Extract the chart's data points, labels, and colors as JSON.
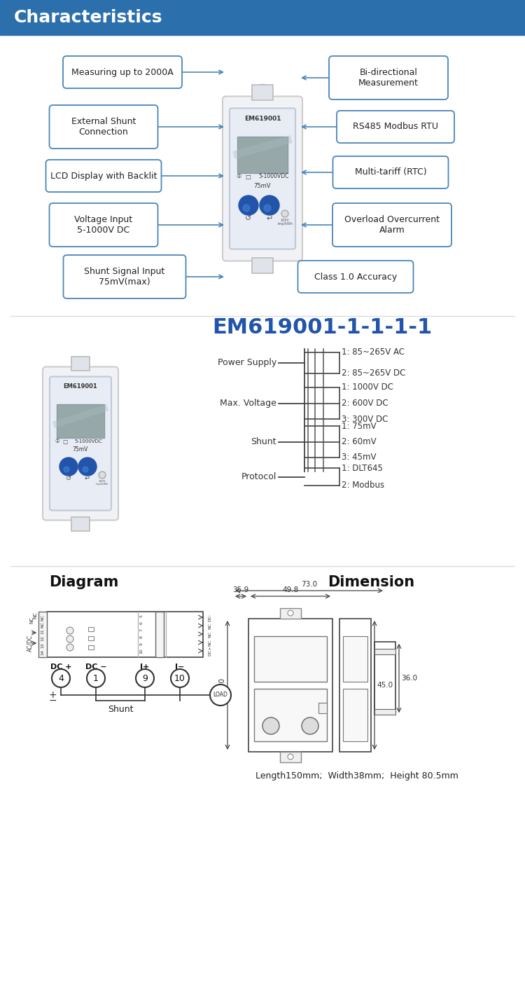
{
  "title": "Characteristics",
  "title_bg": "#2c6fad",
  "title_text_color": "#ffffff",
  "bg_color": "#ffffff",
  "model_code": "EM619001-1-1-1-1",
  "model_code_color": "#2255aa",
  "spec_labels": [
    "Power Supply",
    "Max. Voltage",
    "Shunt",
    "Protocol"
  ],
  "spec_values": [
    [
      "1: 85~265V AC",
      "2: 85~265V DC"
    ],
    [
      "1: 1000V DC",
      "2: 600V DC",
      "3: 300V DC"
    ],
    [
      "1: 75mV",
      "2: 60mV",
      "3: 45mV"
    ],
    [
      "1: DLT645",
      "2: Modbus"
    ]
  ],
  "dim_label": "Length150mm;  Width38mm;  Height 80.5mm",
  "diagram_title": "Diagram",
  "dimension_title": "Dimension",
  "box_color": "#4a86b8",
  "line_color": "#4a86b8"
}
